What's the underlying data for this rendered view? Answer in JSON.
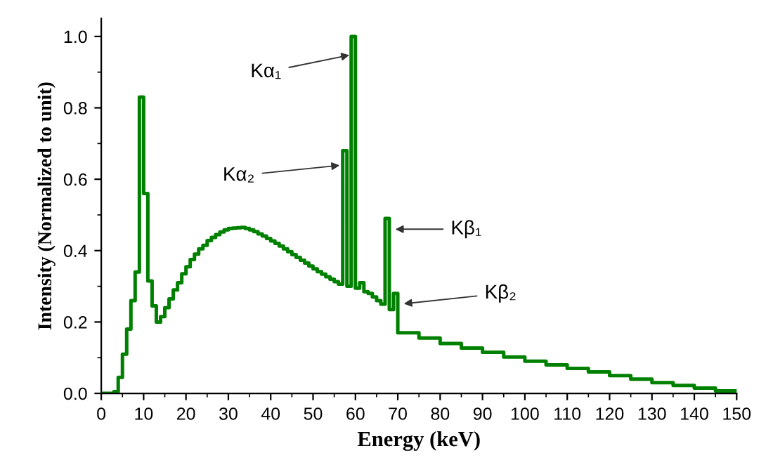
{
  "chart_data": {
    "type": "step",
    "xlabel": "Energy (keV)",
    "ylabel": "Intensity (Normalized to unit)",
    "series": [
      {
        "color": "#008000",
        "x": [
          0,
          1,
          2,
          3,
          4,
          5,
          6,
          7,
          8,
          9,
          10,
          11,
          12,
          13,
          14,
          15,
          16,
          17,
          18,
          19,
          20,
          21,
          22,
          23,
          24,
          25,
          26,
          27,
          28,
          29,
          30,
          31,
          32,
          33,
          34,
          35,
          36,
          37,
          38,
          39,
          40,
          41,
          42,
          43,
          44,
          45,
          46,
          47,
          48,
          49,
          50,
          51,
          52,
          53,
          54,
          55,
          56,
          57,
          58,
          59,
          60,
          61,
          62,
          63,
          64,
          65,
          66,
          67,
          68,
          69,
          70,
          75,
          80,
          85,
          90,
          95,
          100,
          105,
          110,
          115,
          120,
          125,
          130,
          135,
          140,
          145,
          150
        ],
        "values": [
          0,
          0,
          0,
          0.005,
          0.045,
          0.11,
          0.18,
          0.26,
          0.34,
          0.83,
          0.56,
          0.315,
          0.245,
          0.2,
          0.215,
          0.24,
          0.265,
          0.29,
          0.31,
          0.335,
          0.355,
          0.375,
          0.39,
          0.405,
          0.415,
          0.428,
          0.437,
          0.445,
          0.452,
          0.458,
          0.462,
          0.463,
          0.464,
          0.465,
          0.462,
          0.458,
          0.453,
          0.447,
          0.441,
          0.434,
          0.427,
          0.42,
          0.413,
          0.405,
          0.397,
          0.389,
          0.381,
          0.373,
          0.365,
          0.357,
          0.349,
          0.341,
          0.334,
          0.327,
          0.32,
          0.313,
          0.306,
          0.68,
          0.3,
          1.0,
          0.295,
          0.31,
          0.285,
          0.28,
          0.27,
          0.26,
          0.25,
          0.49,
          0.235,
          0.28,
          0.17,
          0.155,
          0.14,
          0.127,
          0.115,
          0.102,
          0.09,
          0.08,
          0.07,
          0.06,
          0.05,
          0.04,
          0.03,
          0.022,
          0.015,
          0.007,
          0
        ]
      }
    ],
    "xlim": [
      0,
      150
    ],
    "xticks": [
      0,
      10,
      20,
      30,
      40,
      50,
      60,
      70,
      80,
      90,
      100,
      110,
      120,
      130,
      140,
      150
    ],
    "ylim": [
      0,
      1.05
    ],
    "yticks": [
      {
        "value": 0,
        "label": "0.0"
      },
      0.2,
      0.4,
      0.6,
      0.8,
      {
        "value": 1,
        "label": "1.0"
      }
    ],
    "grid": false,
    "legend": false,
    "annotations": [
      {
        "text": "Kα₁",
        "x": 59.5,
        "y": 0.95
      },
      {
        "text": "Kα₂",
        "x": 57.2,
        "y": 0.64
      },
      {
        "text": "Kβ₁",
        "x": 68.5,
        "y": 0.46
      },
      {
        "text": "Kβ₂",
        "x": 70.5,
        "y": 0.25
      }
    ]
  }
}
